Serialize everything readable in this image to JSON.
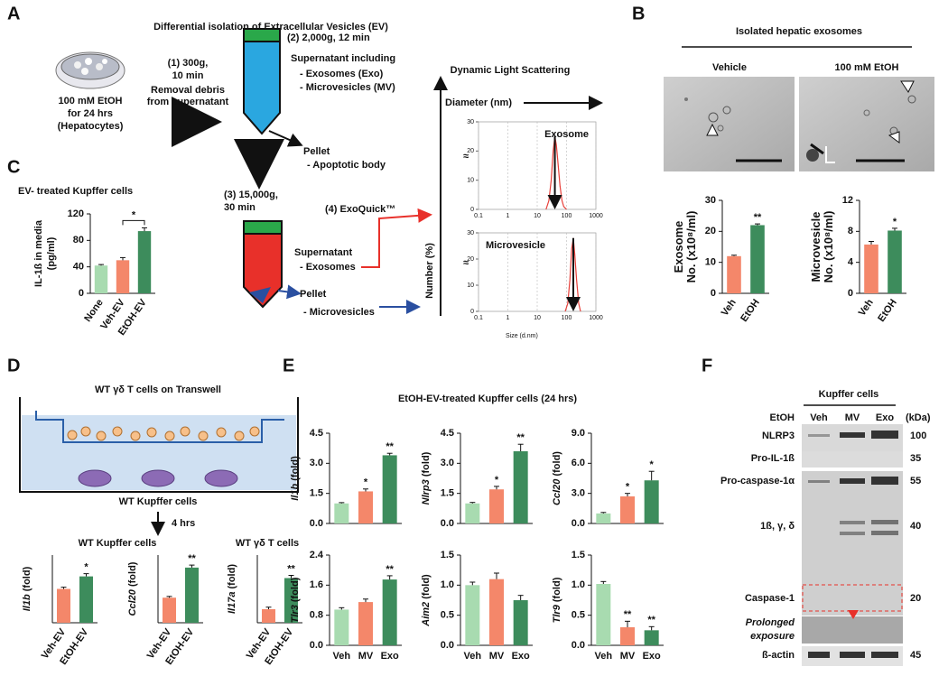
{
  "A": {
    "letter": "A",
    "title": "Differential isolation of Extracellular Vesicles (EV)",
    "cells": [
      "100 mM EtOH",
      "for 24 hrs",
      "(Hepatocytes)"
    ],
    "step1": [
      "(1) 300g,",
      "10 min"
    ],
    "step1_note": [
      "Removal debris",
      "from supernatant"
    ],
    "step2": "(2) 2,000g, 12 min",
    "supernatant1": "Supernatant including",
    "supernatant1_items": [
      "- Exosomes (Exo)",
      "- Microvesicles (MV)"
    ],
    "pellet1": "Pellet",
    "pellet1_item": "- Apoptotic body",
    "step3": [
      "(3) 15,000g,",
      "30 min"
    ],
    "step4": "(4) ExoQuick™",
    "supernatant2": "Supernatant",
    "supernatant2_item": "- Exosomes",
    "pellet2": "Pellet",
    "pellet2_item": "- Microvesicles",
    "dls": {
      "title": "Dynamic Light Scattering",
      "x_label": "Diameter (nm)",
      "y_label": "Number (%)",
      "size_label": "Size (d.nm)",
      "axis_break": "≈",
      "xlim": [
        0.1,
        1000
      ],
      "xticks": [
        0.1,
        1,
        10,
        100,
        1000
      ],
      "log_x": true,
      "ylim": [
        0,
        30
      ],
      "yticks": [
        0,
        10,
        20,
        30
      ],
      "color": "#e8403a",
      "plots": [
        {
          "name": "Exosome",
          "x": [
            20,
            25,
            30,
            35,
            40,
            45,
            50,
            60,
            70,
            80,
            100
          ],
          "values": [
            0,
            3,
            10,
            20,
            25,
            22,
            17,
            8,
            3,
            1,
            0
          ]
        },
        {
          "name": "Microvesicle",
          "x": [
            90,
            110,
            130,
            150,
            170,
            190,
            220,
            260,
            300
          ],
          "values": [
            0,
            3,
            12,
            24,
            28,
            22,
            12,
            3,
            0
          ]
        }
      ]
    }
  },
  "B": {
    "letter": "B",
    "title": "Isolated hepatic exosomes",
    "images": [
      "Vehicle",
      "100 mM EtOH"
    ],
    "categories": [
      "Veh",
      "EtOH"
    ],
    "charts": [
      {
        "y_label": [
          "Exosome",
          "No. (x10⁸/ml)"
        ],
        "ylim": [
          0,
          30
        ],
        "yticks": [
          0,
          10,
          20,
          30
        ],
        "values": [
          12,
          22
        ],
        "errors": [
          0.3,
          0.4
        ],
        "sig": [
          null,
          "**"
        ],
        "colors": [
          "#f4876a",
          "#3d8c5c"
        ]
      },
      {
        "y_label": [
          "Microvesicle",
          "No. (x10⁸/ml)"
        ],
        "ylim": [
          0,
          12
        ],
        "yticks": [
          0,
          4,
          8,
          12
        ],
        "values": [
          6.3,
          8.1
        ],
        "errors": [
          0.4,
          0.3
        ],
        "sig": [
          null,
          "*"
        ],
        "colors": [
          "#f4876a",
          "#3d8c5c"
        ]
      }
    ]
  },
  "C": {
    "letter": "C",
    "title": "EV- treated Kupffer cells",
    "categories": [
      "None",
      "Veh-EV",
      "EtOH-EV"
    ],
    "chart": {
      "y_label": [
        "IL-1ß in media",
        "(pg/ml)"
      ],
      "ylim": [
        0,
        120
      ],
      "yticks": [
        0,
        40,
        80,
        120
      ],
      "values": [
        42,
        50,
        94
      ],
      "errors": [
        1.5,
        4,
        5
      ],
      "sig": "*",
      "colors": [
        "#a8dbb0",
        "#f4876a",
        "#3d8c5c"
      ]
    }
  },
  "D": {
    "letter": "D",
    "insert": "WT γδ T cells on Transwell",
    "bottom": "WT Kupffer cells",
    "time": "4 hrs",
    "groups": [
      "WT Kupffer cells",
      "WT γδ T cells"
    ],
    "fold": "(fold)",
    "categories": [
      "Veh-EV",
      "EtOH-EV"
    ],
    "charts": [
      {
        "gene": "Il1b",
        "ylim": [
          0,
          2
        ],
        "values": [
          1.0,
          1.37
        ],
        "errors": [
          0.05,
          0.08
        ],
        "sig": [
          null,
          "*"
        ],
        "colors": [
          "#f4876a",
          "#3d8c5c"
        ]
      },
      {
        "gene": "Ccl20",
        "ylim": [
          0,
          2.7
        ],
        "values": [
          1.0,
          2.2
        ],
        "errors": [
          0.05,
          0.1
        ],
        "sig": [
          null,
          "**"
        ],
        "colors": [
          "#f4876a",
          "#3d8c5c"
        ]
      },
      {
        "gene": "Il17a",
        "ylim": [
          0,
          5
        ],
        "values": [
          1.0,
          3.3
        ],
        "errors": [
          0.15,
          0.2
        ],
        "sig": [
          null,
          "**"
        ],
        "colors": [
          "#f4876a",
          "#3d8c5c"
        ]
      }
    ]
  },
  "E": {
    "letter": "E",
    "title": "EtOH-EV-treated Kupffer cells (24 hrs)",
    "fold": "(fold)",
    "categories": [
      "Veh",
      "MV",
      "Exo"
    ],
    "charts": [
      {
        "gene": "Il1b",
        "ylim": [
          0,
          4.5
        ],
        "yticks": [
          {
            "value": 0,
            "label": "0.0"
          },
          1.5,
          {
            "value": 3,
            "label": "3.0"
          },
          4.5
        ],
        "values": [
          1.0,
          1.6,
          3.4
        ],
        "errors": [
          0.04,
          0.12,
          0.1
        ],
        "sig": [
          null,
          "*",
          "**"
        ],
        "colors": [
          "#a8dbb0",
          "#f4876a",
          "#3d8c5c"
        ]
      },
      {
        "gene": "Nlrp3",
        "ylim": [
          0,
          4.5
        ],
        "yticks": [
          {
            "value": 0,
            "label": "0.0"
          },
          1.5,
          {
            "value": 3,
            "label": "3.0"
          },
          4.5
        ],
        "values": [
          1.0,
          1.7,
          3.6
        ],
        "errors": [
          0.05,
          0.15,
          0.35
        ],
        "sig": [
          null,
          "*",
          "**"
        ],
        "colors": [
          "#a8dbb0",
          "#f4876a",
          "#3d8c5c"
        ]
      },
      {
        "gene": "Ccl20",
        "ylim": [
          0,
          9
        ],
        "yticks": [
          {
            "value": 0,
            "label": "0.0"
          },
          {
            "value": 3,
            "label": "3.0"
          },
          {
            "value": 6,
            "label": "6.0"
          },
          {
            "value": 9,
            "label": "9.0"
          }
        ],
        "values": [
          1.0,
          2.7,
          4.3
        ],
        "errors": [
          0.1,
          0.3,
          0.9
        ],
        "sig": [
          null,
          "*",
          "*"
        ],
        "colors": [
          "#a8dbb0",
          "#f4876a",
          "#3d8c5c"
        ]
      },
      {
        "gene": "Tlr3",
        "ylim": [
          0,
          2.4
        ],
        "yticks": [
          {
            "value": 0,
            "label": "0.0"
          },
          0.8,
          1.6,
          2.4
        ],
        "values": [
          0.95,
          1.15,
          1.75
        ],
        "errors": [
          0.05,
          0.08,
          0.1
        ],
        "sig": [
          null,
          null,
          "**"
        ],
        "colors": [
          "#a8dbb0",
          "#f4876a",
          "#3d8c5c"
        ]
      },
      {
        "gene": "Aim2",
        "ylim": [
          0,
          1.5
        ],
        "yticks": [
          {
            "value": 0,
            "label": "0.0"
          },
          0.5,
          {
            "value": 1,
            "label": "1.0"
          },
          1.5
        ],
        "values": [
          1.0,
          1.1,
          0.75
        ],
        "errors": [
          0.05,
          0.1,
          0.08
        ],
        "sig": [
          null,
          null,
          null
        ],
        "colors": [
          "#a8dbb0",
          "#f4876a",
          "#3d8c5c"
        ]
      },
      {
        "gene": "Tlr9",
        "ylim": [
          0,
          1.5
        ],
        "yticks": [
          {
            "value": 0,
            "label": "0.0"
          },
          0.5,
          {
            "value": 1,
            "label": "1.0"
          },
          1.5
        ],
        "values": [
          1.02,
          0.3,
          0.25
        ],
        "errors": [
          0.04,
          0.1,
          0.06
        ],
        "sig": [
          null,
          "**",
          "**"
        ],
        "colors": [
          "#a8dbb0",
          "#f4876a",
          "#3d8c5c"
        ]
      }
    ]
  },
  "F": {
    "letter": "F",
    "group": "Kupffer cells",
    "treatment": "EtOH",
    "lanes": [
      "Veh",
      "MV",
      "Exo"
    ],
    "unit": "(kDa)",
    "rows": [
      {
        "name": "NLRP3",
        "kda": 100
      },
      {
        "name": "Pro-IL-1ß",
        "kda": 35
      },
      {
        "name": "Pro-caspase-1α",
        "kda": 55
      },
      {
        "name": "1ß, γ, δ",
        "kda": 40
      },
      {
        "name": "Caspase-1",
        "kda": 20
      },
      {
        "name": [
          "Prolonged",
          "exposure"
        ]
      },
      {
        "name": "ß-actin",
        "kda": 45
      }
    ]
  }
}
